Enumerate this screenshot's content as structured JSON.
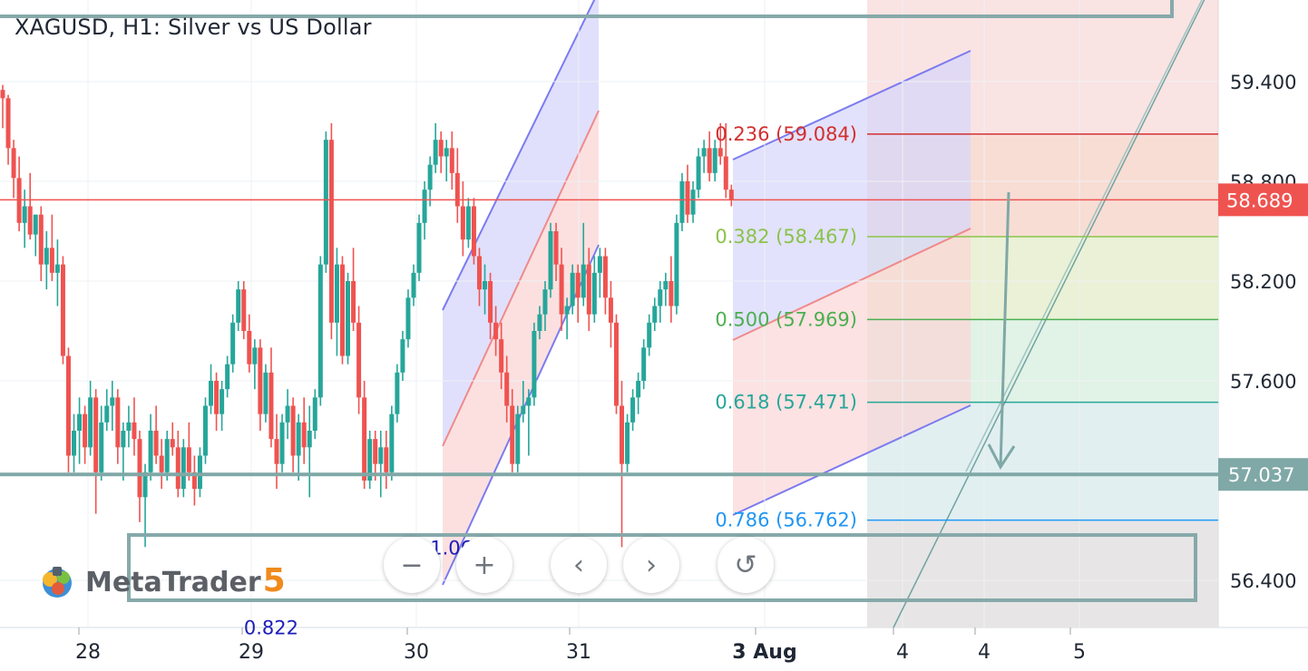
{
  "header": {
    "title": "XAGUSD, H1: Silver vs US Dollar"
  },
  "logo": {
    "text": "MetaTrader",
    "version": "5"
  },
  "controls": {
    "zoom_out": "−",
    "zoom_in": "+",
    "scroll_left": "‹",
    "scroll_right": "›",
    "reset": "↺"
  },
  "colors": {
    "up": "#26a69a",
    "down": "#ef5350",
    "fib_236": "#d32f2f",
    "fib_382": "#8bc34a",
    "fib_500": "#4caf50",
    "fib_618": "#26a69a",
    "fib_786": "#2196f3",
    "price_line": "#ef5350",
    "support_line": "#7fa8a6",
    "channel_blue": "#7b7bf0"
  },
  "chart_data": {
    "type": "candlestick",
    "symbol": "XAGUSD",
    "timeframe": "H1",
    "ylim": [
      56.1,
      59.8
    ],
    "y_ticks": [
      56.4,
      57.037,
      57.6,
      58.2,
      58.8,
      59.4
    ],
    "y_tick_labels": [
      "56.400",
      "57.037",
      "57.600",
      "58.200",
      "58.800",
      "59.400"
    ],
    "x_tick_labels": [
      "28",
      "29",
      "30",
      "31",
      "3 Aug",
      "4",
      "4",
      "5"
    ],
    "last_price": 58.689,
    "last_price_label": "58.689",
    "support_level": 57.037,
    "support_label": "57.037",
    "fib_levels": [
      {
        "ratio": 0.236,
        "price": 59.084,
        "label": "0.236 (59.084)"
      },
      {
        "ratio": 0.382,
        "price": 58.467,
        "label": "0.382 (58.467)"
      },
      {
        "ratio": 0.5,
        "price": 57.969,
        "label": "0.500 (57.969)"
      },
      {
        "ratio": 0.618,
        "price": 57.471,
        "label": "0.618 (57.471)"
      },
      {
        "ratio": 0.786,
        "price": 56.762,
        "label": "0.786 (56.762)"
      }
    ],
    "annotations": [
      {
        "text": "0.822",
        "price": 56.12,
        "bar": 49
      },
      {
        "text": "1.063",
        "price": 56.6,
        "bar": 83
      }
    ],
    "candles": [
      [
        59.35,
        59.38,
        59.12,
        59.3
      ],
      [
        59.3,
        59.32,
        58.9,
        59.0
      ],
      [
        59.0,
        59.05,
        58.7,
        58.82
      ],
      [
        58.82,
        58.95,
        58.5,
        58.55
      ],
      [
        58.55,
        58.75,
        58.4,
        58.65
      ],
      [
        58.65,
        58.85,
        58.45,
        58.48
      ],
      [
        58.48,
        58.6,
        58.35,
        58.6
      ],
      [
        58.6,
        58.65,
        58.2,
        58.3
      ],
      [
        58.3,
        58.5,
        58.15,
        58.4
      ],
      [
        58.4,
        58.6,
        58.2,
        58.25
      ],
      [
        58.25,
        58.45,
        58.05,
        58.3
      ],
      [
        58.3,
        58.35,
        57.7,
        57.75
      ],
      [
        57.75,
        57.8,
        57.05,
        57.15
      ],
      [
        57.15,
        57.4,
        57.05,
        57.3
      ],
      [
        57.3,
        57.5,
        57.1,
        57.4
      ],
      [
        57.4,
        57.45,
        57.1,
        57.2
      ],
      [
        57.2,
        57.6,
        57.15,
        57.5
      ],
      [
        57.5,
        57.55,
        56.8,
        57.05
      ],
      [
        57.05,
        57.45,
        57.0,
        57.35
      ],
      [
        57.35,
        57.55,
        57.3,
        57.45
      ],
      [
        57.45,
        57.6,
        57.3,
        57.5
      ],
      [
        57.5,
        57.55,
        57.1,
        57.2
      ],
      [
        57.2,
        57.35,
        57.0,
        57.3
      ],
      [
        57.3,
        57.45,
        57.2,
        57.35
      ],
      [
        57.35,
        57.5,
        57.15,
        57.25
      ],
      [
        57.25,
        57.3,
        56.75,
        56.9
      ],
      [
        56.9,
        57.1,
        56.6,
        57.05
      ],
      [
        57.05,
        57.4,
        57.0,
        57.3
      ],
      [
        57.3,
        57.45,
        57.1,
        57.15
      ],
      [
        57.15,
        57.25,
        56.95,
        57.05
      ],
      [
        57.05,
        57.3,
        57.0,
        57.25
      ],
      [
        57.25,
        57.35,
        57.15,
        57.2
      ],
      [
        57.2,
        57.3,
        56.9,
        56.95
      ],
      [
        56.95,
        57.25,
        56.9,
        57.2
      ],
      [
        57.2,
        57.35,
        57.0,
        57.05
      ],
      [
        57.05,
        57.15,
        56.85,
        56.95
      ],
      [
        56.95,
        57.2,
        56.9,
        57.15
      ],
      [
        57.15,
        57.5,
        57.1,
        57.45
      ],
      [
        57.45,
        57.7,
        57.4,
        57.6
      ],
      [
        57.6,
        57.65,
        57.3,
        57.4
      ],
      [
        57.4,
        57.6,
        57.3,
        57.55
      ],
      [
        57.55,
        57.75,
        57.5,
        57.7
      ],
      [
        57.7,
        58.0,
        57.65,
        57.95
      ],
      [
        57.95,
        58.2,
        57.9,
        58.15
      ],
      [
        58.15,
        58.2,
        57.85,
        57.9
      ],
      [
        57.9,
        58.0,
        57.65,
        57.7
      ],
      [
        57.7,
        57.85,
        57.55,
        57.8
      ],
      [
        57.8,
        57.85,
        57.3,
        57.4
      ],
      [
        57.4,
        57.7,
        57.35,
        57.65
      ],
      [
        57.65,
        57.8,
        57.2,
        57.25
      ],
      [
        57.25,
        57.4,
        56.95,
        57.1
      ],
      [
        57.1,
        57.4,
        57.05,
        57.35
      ],
      [
        57.35,
        57.55,
        57.25,
        57.45
      ],
      [
        57.45,
        57.5,
        57.05,
        57.15
      ],
      [
        57.15,
        57.4,
        57.0,
        57.35
      ],
      [
        57.35,
        57.5,
        57.1,
        57.2
      ],
      [
        57.2,
        57.45,
        56.9,
        57.3
      ],
      [
        57.3,
        57.55,
        57.25,
        57.5
      ],
      [
        57.5,
        58.35,
        57.45,
        58.3
      ],
      [
        58.3,
        59.1,
        58.25,
        59.05
      ],
      [
        59.05,
        59.15,
        57.85,
        57.95
      ],
      [
        57.95,
        58.4,
        57.75,
        58.3
      ],
      [
        58.3,
        58.35,
        57.7,
        57.75
      ],
      [
        57.75,
        58.25,
        57.7,
        58.2
      ],
      [
        58.2,
        58.4,
        57.9,
        57.95
      ],
      [
        57.95,
        58.05,
        57.4,
        57.5
      ],
      [
        57.5,
        57.6,
        56.95,
        57.0
      ],
      [
        57.0,
        57.3,
        56.95,
        57.25
      ],
      [
        57.25,
        57.3,
        57.0,
        57.1
      ],
      [
        57.1,
        57.3,
        56.9,
        57.2
      ],
      [
        57.2,
        57.3,
        56.95,
        57.05
      ],
      [
        57.05,
        57.45,
        57.0,
        57.4
      ],
      [
        57.4,
        57.7,
        57.35,
        57.65
      ],
      [
        57.65,
        57.9,
        57.6,
        57.85
      ],
      [
        57.85,
        58.15,
        57.8,
        58.1
      ],
      [
        58.1,
        58.3,
        58.05,
        58.25
      ],
      [
        58.25,
        58.6,
        58.2,
        58.55
      ],
      [
        58.55,
        58.8,
        58.45,
        58.75
      ],
      [
        58.75,
        58.95,
        58.65,
        58.9
      ],
      [
        58.9,
        59.15,
        58.85,
        59.05
      ],
      [
        59.05,
        59.1,
        58.85,
        58.95
      ],
      [
        58.95,
        59.05,
        58.8,
        59.0
      ],
      [
        59.0,
        59.1,
        58.75,
        58.85
      ],
      [
        58.85,
        59.0,
        58.55,
        58.65
      ]
    ],
    "candles_day2": [
      [
        58.65,
        58.8,
        58.35,
        58.45
      ],
      [
        58.45,
        58.7,
        58.4,
        58.65
      ],
      [
        58.65,
        58.7,
        58.3,
        58.35
      ],
      [
        58.35,
        58.4,
        58.05,
        58.15
      ],
      [
        58.15,
        58.3,
        58.0,
        58.2
      ],
      [
        58.2,
        58.25,
        57.85,
        57.95
      ],
      [
        57.95,
        58.05,
        57.75,
        57.85
      ],
      [
        57.85,
        57.95,
        57.55,
        57.65
      ],
      [
        57.65,
        57.75,
        57.35,
        57.45
      ],
      [
        57.45,
        57.55,
        57.05,
        57.1
      ],
      [
        57.1,
        57.45,
        57.05,
        57.4
      ],
      [
        57.4,
        57.6,
        57.35,
        57.45
      ],
      [
        57.45,
        57.55,
        57.15,
        57.5
      ],
      [
        57.5,
        57.95,
        57.45,
        57.9
      ],
      [
        57.9,
        58.05,
        57.85,
        58.0
      ],
      [
        58.0,
        58.2,
        57.9,
        58.15
      ],
      [
        58.15,
        58.55,
        58.1,
        58.5
      ],
      [
        58.5,
        58.55,
        58.2,
        58.3
      ],
      [
        58.3,
        58.4,
        57.9,
        58.0
      ],
      [
        58.0,
        58.1,
        57.85,
        58.05
      ],
      [
        58.05,
        58.3,
        58.0,
        58.25
      ],
      [
        58.25,
        58.3,
        57.95,
        58.1
      ],
      [
        58.1,
        58.55,
        58.05,
        58.3
      ],
      [
        58.3,
        58.4,
        57.9,
        58.0
      ],
      [
        58.0,
        58.35,
        57.95,
        58.25
      ],
      [
        58.25,
        58.4,
        58.1,
        58.35
      ],
      [
        58.35,
        58.4,
        58.0,
        58.1
      ],
      [
        58.1,
        58.2,
        57.8,
        57.95
      ],
      [
        57.95,
        58.0,
        57.4,
        57.45
      ],
      [
        57.45,
        57.6,
        56.6,
        57.1
      ],
      [
        57.1,
        57.4,
        57.05,
        57.35
      ],
      [
        57.35,
        57.55,
        57.3,
        57.5
      ],
      [
        57.5,
        57.65,
        57.4,
        57.6
      ],
      [
        57.6,
        57.85,
        57.55,
        57.8
      ],
      [
        57.8,
        58.0,
        57.75,
        57.95
      ],
      [
        57.95,
        58.1,
        57.9,
        58.05
      ],
      [
        58.05,
        58.2,
        57.95,
        58.15
      ],
      [
        58.15,
        58.25,
        58.05,
        58.2
      ],
      [
        58.2,
        58.35,
        57.95,
        58.05
      ],
      [
        58.05,
        58.6,
        58.0,
        58.55
      ],
      [
        58.55,
        58.85,
        58.5,
        58.8
      ],
      [
        58.8,
        58.9,
        58.55,
        58.6
      ],
      [
        58.6,
        58.8,
        58.55,
        58.75
      ],
      [
        58.75,
        59.0,
        58.7,
        58.95
      ],
      [
        58.95,
        59.05,
        58.85,
        59.0
      ],
      [
        59.0,
        59.1,
        58.8,
        58.85
      ],
      [
        58.85,
        59.05,
        58.8,
        59.0
      ],
      [
        59.0,
        59.15,
        58.9,
        58.95
      ],
      [
        58.95,
        59.15,
        58.7,
        58.75
      ],
      [
        58.75,
        58.78,
        58.65,
        58.69
      ]
    ]
  }
}
